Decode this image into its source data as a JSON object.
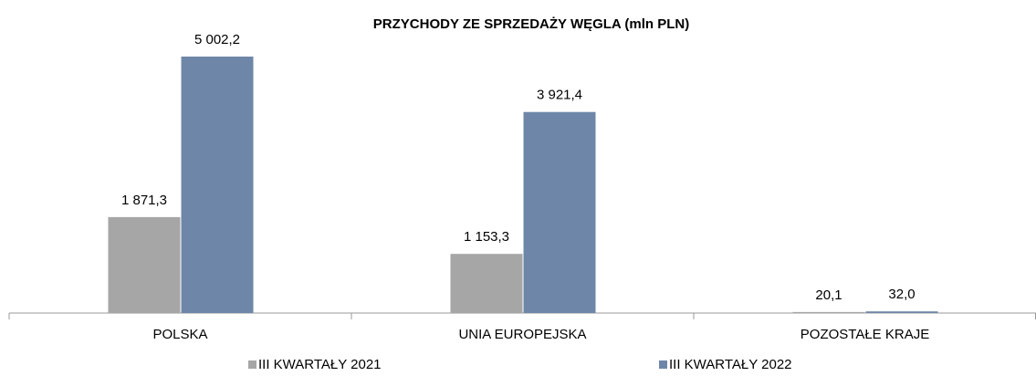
{
  "chart_data": {
    "type": "bar",
    "title": "PRZYCHODY ZE SPRZEDAŻY WĘGLA (mln PLN)",
    "categories": [
      "POLSKA",
      "UNIA EUROPEJSKA",
      "POZOSTAŁE KRAJE"
    ],
    "series": [
      {
        "name": "III KWARTAŁY 2021",
        "color": "#a6a6a6",
        "values": [
          1871.3,
          1153.3,
          20.1
        ],
        "value_labels": [
          "1 871,3",
          "1 153,3",
          "20,1"
        ]
      },
      {
        "name": "III KWARTAŁY 2022",
        "color": "#6e87a8",
        "values": [
          5002.2,
          3921.4,
          32.0
        ],
        "value_labels": [
          "5 002,2",
          "3 921,4",
          "32,0"
        ]
      }
    ],
    "legend": "bottom"
  }
}
